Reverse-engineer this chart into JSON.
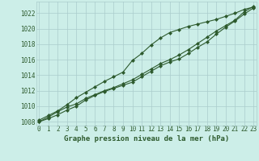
{
  "title": "Graphe pression niveau de la mer (hPa)",
  "background_color": "#cceee8",
  "grid_color": "#aacccc",
  "line_color": "#2d5a2d",
  "x_values": [
    0,
    1,
    2,
    3,
    4,
    5,
    6,
    7,
    8,
    9,
    10,
    11,
    12,
    13,
    14,
    15,
    16,
    17,
    18,
    19,
    20,
    21,
    22,
    23
  ],
  "line1": [
    1008.0,
    1008.6,
    1009.3,
    1009.9,
    1010.3,
    1011.0,
    1011.5,
    1012.0,
    1012.4,
    1012.9,
    1013.4,
    1014.1,
    1014.8,
    1015.5,
    1016.0,
    1016.6,
    1017.3,
    1018.1,
    1018.9,
    1019.7,
    1020.4,
    1021.1,
    1022.2,
    1022.9
  ],
  "line2": [
    1008.2,
    1008.8,
    1009.4,
    1010.2,
    1011.1,
    1011.8,
    1012.5,
    1013.2,
    1013.8,
    1014.4,
    1015.9,
    1016.8,
    1017.9,
    1018.8,
    1019.5,
    1019.9,
    1020.3,
    1020.6,
    1020.9,
    1021.2,
    1021.6,
    1022.0,
    1022.5,
    1022.8
  ],
  "line3": [
    1008.0,
    1008.4,
    1008.9,
    1009.5,
    1010.0,
    1010.8,
    1011.4,
    1011.9,
    1012.3,
    1012.7,
    1013.1,
    1013.8,
    1014.5,
    1015.2,
    1015.7,
    1016.1,
    1016.8,
    1017.6,
    1018.3,
    1019.3,
    1020.2,
    1021.0,
    1021.9,
    1022.7
  ],
  "ylim": [
    1007.5,
    1023.5
  ],
  "yticks": [
    1008,
    1010,
    1012,
    1014,
    1016,
    1018,
    1020,
    1022
  ],
  "xticks": [
    0,
    1,
    2,
    3,
    4,
    5,
    6,
    7,
    8,
    9,
    10,
    11,
    12,
    13,
    14,
    15,
    16,
    17,
    18,
    19,
    20,
    21,
    22,
    23
  ],
  "marker": "D",
  "marker_size": 2.0,
  "line_width": 0.8,
  "tick_fontsize": 5.5,
  "xlabel_fontsize": 6.5
}
